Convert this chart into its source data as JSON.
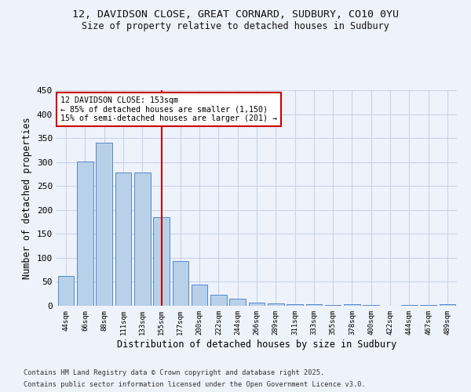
{
  "title_line1": "12, DAVIDSON CLOSE, GREAT CORNARD, SUDBURY, CO10 0YU",
  "title_line2": "Size of property relative to detached houses in Sudbury",
  "xlabel": "Distribution of detached houses by size in Sudbury",
  "ylabel": "Number of detached properties",
  "bar_color": "#b8d0e8",
  "bar_edge_color": "#5588cc",
  "bg_color": "#eef2fa",
  "grid_color": "#c8d4e8",
  "vline_color": "#cc0000",
  "annotation_text": "12 DAVIDSON CLOSE: 153sqm\n← 85% of detached houses are smaller (1,150)\n15% of semi-detached houses are larger (201) →",
  "annotation_box_facecolor": "#ffffff",
  "annotation_border_color": "#cc0000",
  "footnote1": "Contains HM Land Registry data © Crown copyright and database right 2025.",
  "footnote2": "Contains public sector information licensed under the Open Government Licence v3.0.",
  "categories": [
    "44sqm",
    "66sqm",
    "88sqm",
    "111sqm",
    "133sqm",
    "155sqm",
    "177sqm",
    "200sqm",
    "222sqm",
    "244sqm",
    "266sqm",
    "289sqm",
    "311sqm",
    "333sqm",
    "355sqm",
    "378sqm",
    "400sqm",
    "422sqm",
    "444sqm",
    "467sqm",
    "489sqm"
  ],
  "values": [
    63,
    301,
    340,
    279,
    279,
    185,
    93,
    45,
    23,
    14,
    7,
    5,
    3,
    4,
    2,
    3,
    1,
    0,
    2,
    1,
    3
  ],
  "ylim": [
    0,
    450
  ],
  "yticks": [
    0,
    50,
    100,
    150,
    200,
    250,
    300,
    350,
    400,
    450
  ]
}
